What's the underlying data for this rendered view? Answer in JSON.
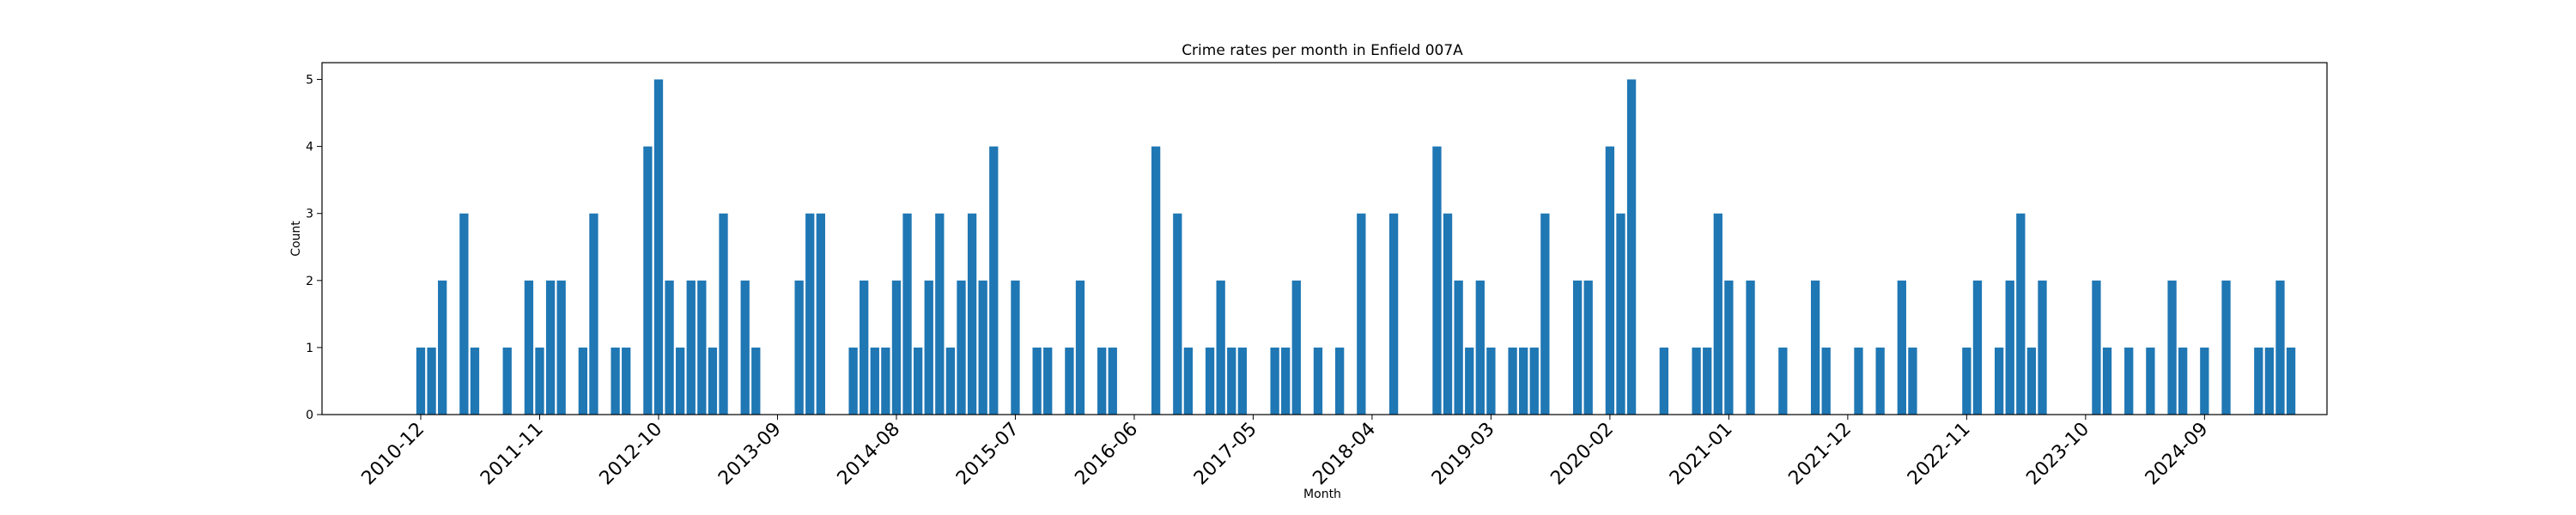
{
  "chart_data": {
    "type": "bar",
    "title": "Crime rates per month in Enfield 007A",
    "xlabel": "Month",
    "ylabel": "Count",
    "ylim": [
      0,
      5.25
    ],
    "yticks": [
      0,
      1,
      2,
      3,
      4,
      5
    ],
    "xticks": [
      "2010-12",
      "2011-11",
      "2012-10",
      "2013-09",
      "2014-08",
      "2015-07",
      "2016-06",
      "2017-05",
      "2018-04",
      "2019-03",
      "2020-02",
      "2021-01",
      "2021-12",
      "2022-11",
      "2023-10",
      "2024-09"
    ],
    "bar_color": "#1f77b4",
    "grid": false,
    "bars": [
      {
        "x": "2010-12",
        "y": 1
      },
      {
        "x": "2011-01",
        "y": 1
      },
      {
        "x": "2011-02",
        "y": 2
      },
      {
        "x": "2011-04",
        "y": 3
      },
      {
        "x": "2011-05",
        "y": 1
      },
      {
        "x": "2011-08",
        "y": 1
      },
      {
        "x": "2011-10",
        "y": 2
      },
      {
        "x": "2011-11",
        "y": 1
      },
      {
        "x": "2011-12",
        "y": 2
      },
      {
        "x": "2012-01",
        "y": 2
      },
      {
        "x": "2012-03",
        "y": 1
      },
      {
        "x": "2012-04",
        "y": 3
      },
      {
        "x": "2012-06",
        "y": 1
      },
      {
        "x": "2012-07",
        "y": 1
      },
      {
        "x": "2012-09",
        "y": 4
      },
      {
        "x": "2012-10",
        "y": 5
      },
      {
        "x": "2012-11",
        "y": 2
      },
      {
        "x": "2012-12",
        "y": 1
      },
      {
        "x": "2013-01",
        "y": 2
      },
      {
        "x": "2013-02",
        "y": 2
      },
      {
        "x": "2013-03",
        "y": 1
      },
      {
        "x": "2013-04",
        "y": 3
      },
      {
        "x": "2013-06",
        "y": 2
      },
      {
        "x": "2013-07",
        "y": 1
      },
      {
        "x": "2013-11",
        "y": 2
      },
      {
        "x": "2013-12",
        "y": 3
      },
      {
        "x": "2014-01",
        "y": 3
      },
      {
        "x": "2014-04",
        "y": 1
      },
      {
        "x": "2014-05",
        "y": 2
      },
      {
        "x": "2014-06",
        "y": 1
      },
      {
        "x": "2014-07",
        "y": 1
      },
      {
        "x": "2014-08",
        "y": 2
      },
      {
        "x": "2014-09",
        "y": 3
      },
      {
        "x": "2014-10",
        "y": 1
      },
      {
        "x": "2014-11",
        "y": 2
      },
      {
        "x": "2014-12",
        "y": 3
      },
      {
        "x": "2015-01",
        "y": 1
      },
      {
        "x": "2015-02",
        "y": 2
      },
      {
        "x": "2015-03",
        "y": 3
      },
      {
        "x": "2015-04",
        "y": 2
      },
      {
        "x": "2015-05",
        "y": 4
      },
      {
        "x": "2015-07",
        "y": 2
      },
      {
        "x": "2015-09",
        "y": 1
      },
      {
        "x": "2015-10",
        "y": 1
      },
      {
        "x": "2015-12",
        "y": 1
      },
      {
        "x": "2016-01",
        "y": 2
      },
      {
        "x": "2016-03",
        "y": 1
      },
      {
        "x": "2016-04",
        "y": 1
      },
      {
        "x": "2016-08",
        "y": 4
      },
      {
        "x": "2016-10",
        "y": 3
      },
      {
        "x": "2016-11",
        "y": 1
      },
      {
        "x": "2017-01",
        "y": 1
      },
      {
        "x": "2017-02",
        "y": 2
      },
      {
        "x": "2017-03",
        "y": 1
      },
      {
        "x": "2017-04",
        "y": 1
      },
      {
        "x": "2017-07",
        "y": 1
      },
      {
        "x": "2017-08",
        "y": 1
      },
      {
        "x": "2017-09",
        "y": 2
      },
      {
        "x": "2017-11",
        "y": 1
      },
      {
        "x": "2018-01",
        "y": 1
      },
      {
        "x": "2018-03",
        "y": 3
      },
      {
        "x": "2018-06",
        "y": 3
      },
      {
        "x": "2018-10",
        "y": 4
      },
      {
        "x": "2018-11",
        "y": 3
      },
      {
        "x": "2018-12",
        "y": 2
      },
      {
        "x": "2019-01",
        "y": 1
      },
      {
        "x": "2019-02",
        "y": 2
      },
      {
        "x": "2019-03",
        "y": 1
      },
      {
        "x": "2019-05",
        "y": 1
      },
      {
        "x": "2019-06",
        "y": 1
      },
      {
        "x": "2019-07",
        "y": 1
      },
      {
        "x": "2019-08",
        "y": 3
      },
      {
        "x": "2019-11",
        "y": 2
      },
      {
        "x": "2019-12",
        "y": 2
      },
      {
        "x": "2020-02",
        "y": 4
      },
      {
        "x": "2020-03",
        "y": 3
      },
      {
        "x": "2020-04",
        "y": 5
      },
      {
        "x": "2020-07",
        "y": 1
      },
      {
        "x": "2020-10",
        "y": 1
      },
      {
        "x": "2020-11",
        "y": 1
      },
      {
        "x": "2020-12",
        "y": 3
      },
      {
        "x": "2021-01",
        "y": 2
      },
      {
        "x": "2021-03",
        "y": 2
      },
      {
        "x": "2021-06",
        "y": 1
      },
      {
        "x": "2021-09",
        "y": 2
      },
      {
        "x": "2021-10",
        "y": 1
      },
      {
        "x": "2022-01",
        "y": 1
      },
      {
        "x": "2022-03",
        "y": 1
      },
      {
        "x": "2022-05",
        "y": 2
      },
      {
        "x": "2022-06",
        "y": 1
      },
      {
        "x": "2022-11",
        "y": 1
      },
      {
        "x": "2022-12",
        "y": 2
      },
      {
        "x": "2023-02",
        "y": 1
      },
      {
        "x": "2023-03",
        "y": 2
      },
      {
        "x": "2023-04",
        "y": 3
      },
      {
        "x": "2023-05",
        "y": 1
      },
      {
        "x": "2023-06",
        "y": 2
      },
      {
        "x": "2023-11",
        "y": 2
      },
      {
        "x": "2023-12",
        "y": 1
      },
      {
        "x": "2024-02",
        "y": 1
      },
      {
        "x": "2024-04",
        "y": 1
      },
      {
        "x": "2024-06",
        "y": 2
      },
      {
        "x": "2024-07",
        "y": 1
      },
      {
        "x": "2024-09",
        "y": 1
      },
      {
        "x": "2024-11",
        "y": 2
      },
      {
        "x": "2025-02",
        "y": 1
      },
      {
        "x": "2025-03",
        "y": 1
      },
      {
        "x": "2025-04",
        "y": 2
      },
      {
        "x": "2025-05",
        "y": 1
      }
    ]
  }
}
